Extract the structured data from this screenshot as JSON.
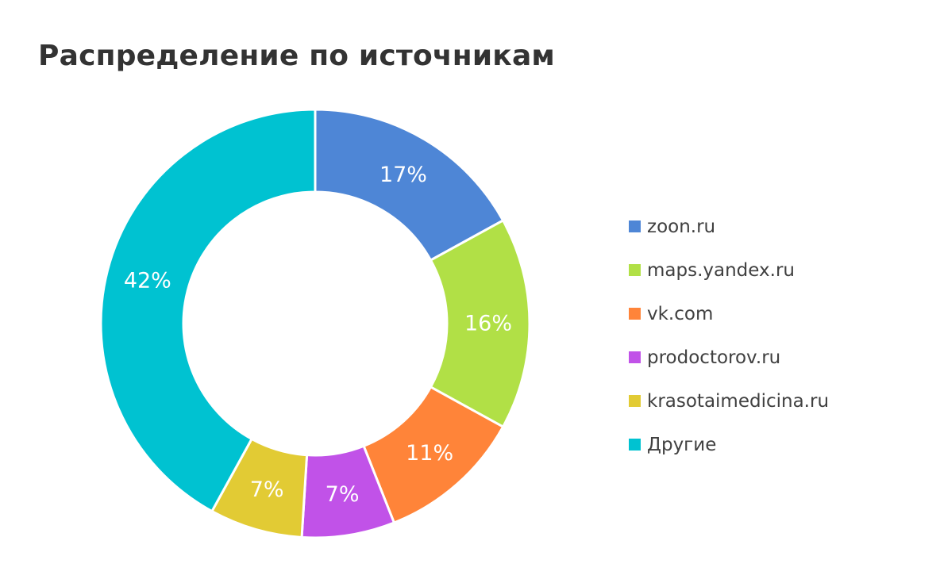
{
  "chart_data": {
    "type": "pie",
    "title": "Распределение по источникам",
    "style": "donut",
    "legend_position": "right",
    "slices": [
      {
        "name": "zoon.ru",
        "value": 17,
        "label": "17%",
        "color": "#4e86d6"
      },
      {
        "name": "maps.yandex.ru",
        "value": 16,
        "label": "16%",
        "color": "#b1e046"
      },
      {
        "name": "vk.com",
        "value": 11,
        "label": "11%",
        "color": "#ff8439"
      },
      {
        "name": "prodoctorov.ru",
        "value": 7,
        "label": "7%",
        "color": "#c152e8"
      },
      {
        "name": "krasotaimedicina.ru",
        "value": 7,
        "label": "7%",
        "color": "#e2cb34"
      },
      {
        "name": "Другие",
        "value": 42,
        "label": "42%",
        "color": "#00c2d1"
      }
    ]
  }
}
